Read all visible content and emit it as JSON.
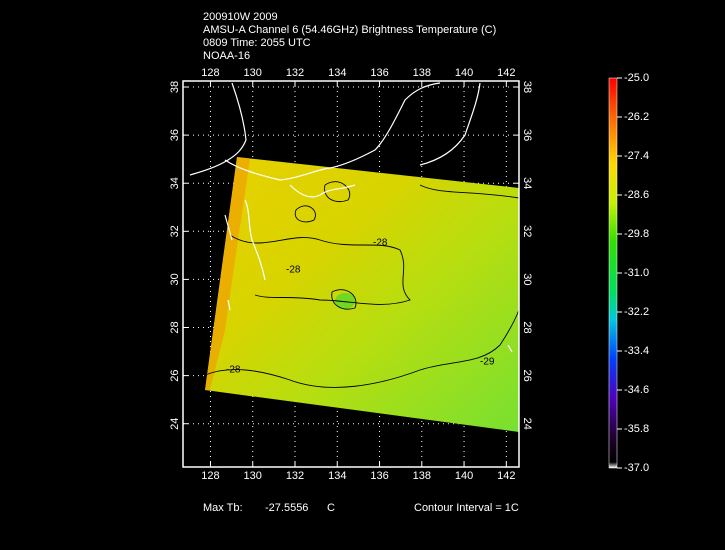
{
  "header": {
    "lines": [
      "200910W 2009",
      "AMSU-A Channel 6 (54.46GHz) Brightness Temperature (C)",
      "0809 Time: 2055 UTC",
      "NOAA-16"
    ]
  },
  "map": {
    "xlim": [
      126.7,
      142.6
    ],
    "ylim": [
      22.2,
      38.25
    ],
    "xticks": [
      128,
      130,
      132,
      134,
      136,
      138,
      140,
      142
    ],
    "yticks": [
      24,
      26,
      28,
      30,
      32,
      34,
      36,
      38
    ],
    "grid": true,
    "contour_labels": [
      "-28",
      "-28",
      "-28",
      "-29"
    ]
  },
  "colorbar": {
    "lim": [
      -37,
      -25
    ],
    "ticks": [
      {
        "value": -25,
        "label": "-25.0"
      },
      {
        "value": -26.2,
        "label": "-26.2"
      },
      {
        "value": -27.4,
        "label": "-27.4"
      },
      {
        "value": -28.6,
        "label": "-28.6"
      },
      {
        "value": -29.8,
        "label": "-29.8"
      },
      {
        "value": -31,
        "label": "-31.0"
      },
      {
        "value": -32.2,
        "label": "-32.2"
      },
      {
        "value": -33.4,
        "label": "-33.4"
      },
      {
        "value": -34.6,
        "label": "-34.6"
      },
      {
        "value": -35.8,
        "label": "-35.8"
      },
      {
        "value": -37,
        "label": "-37.0"
      }
    ]
  },
  "footer": {
    "max_label": "Max Tb:",
    "max_value": "-27.5556",
    "unit": "C",
    "contour_interval": "Contour Interval = 1C"
  }
}
